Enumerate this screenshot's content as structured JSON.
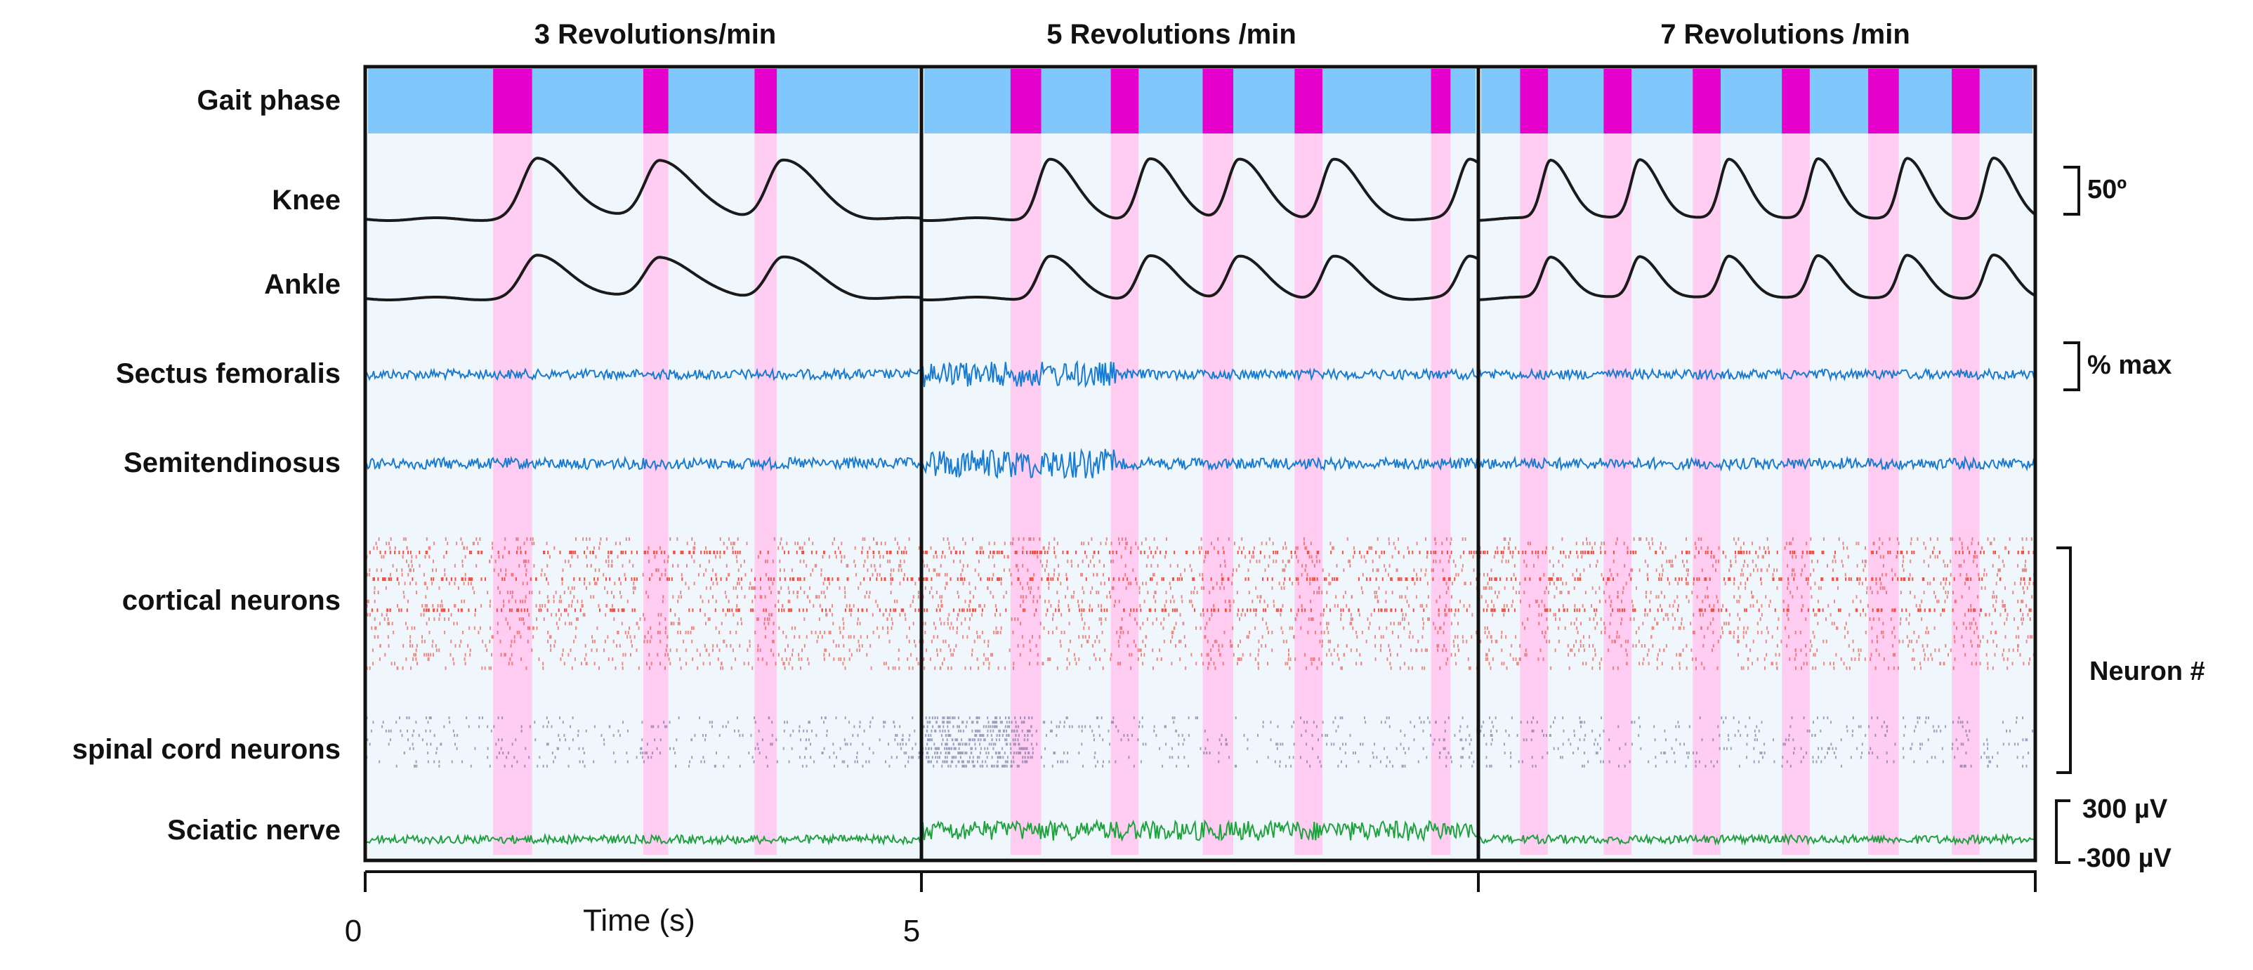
{
  "chart_data": {
    "type": "multi-panel time series with raster plots",
    "panels": [
      {
        "title": "3 Revolutions/min",
        "stance_bands": [
          [
            0.23,
            0.3
          ],
          [
            0.5,
            0.545
          ],
          [
            0.7,
            0.74
          ]
        ],
        "knee_peaks": [
          0.31,
          0.53,
          0.75
        ],
        "ankle_peaks": [
          0.31,
          0.53,
          0.75
        ]
      },
      {
        "title": "5 Revolutions /min",
        "stance_bands": [
          [
            0.16,
            0.215
          ],
          [
            0.34,
            0.39
          ],
          [
            0.505,
            0.56
          ],
          [
            0.67,
            0.72
          ],
          [
            0.915,
            0.95
          ]
        ],
        "knee_peaks": [
          0.23,
          0.41,
          0.57,
          0.74,
          0.985
        ],
        "ankle_peaks": [
          0.23,
          0.41,
          0.57,
          0.74,
          0.985
        ]
      },
      {
        "title": "7 Revolutions /min",
        "stance_bands": [
          [
            0.075,
            0.125
          ],
          [
            0.225,
            0.275
          ],
          [
            0.385,
            0.435
          ],
          [
            0.545,
            0.595
          ],
          [
            0.7,
            0.755
          ],
          [
            0.85,
            0.9
          ]
        ],
        "knee_peaks": [
          0.13,
          0.29,
          0.45,
          0.61,
          0.77,
          0.925
        ],
        "ankle_peaks": [
          0.13,
          0.29,
          0.45,
          0.61,
          0.77,
          0.925
        ]
      }
    ],
    "rows": [
      "Gait phase",
      "Knee",
      "Ankle",
      "Sectus femoralis",
      "Semitendinosus",
      "cortical neurons",
      "spinal cord neurons",
      "Sciatic nerve"
    ],
    "scale_bars": {
      "angle": "50º",
      "emg": "% max",
      "neurons": "Neuron #",
      "nerve_top": "300 µV",
      "nerve_bottom": "-300 µV"
    },
    "x_axis": {
      "label": "Time (s)",
      "ticks": [
        "0",
        "5"
      ]
    },
    "colors": {
      "gait_swing": "#80c8fc",
      "gait_stance": "#e600cc",
      "stance_band": "#ffc8f0",
      "panel_bg": "#f0f7fc",
      "kinematics": "#1a1a1a",
      "emg": "#1a7ad0",
      "cortical": "#e8443a",
      "spinal": "#5a5a8c",
      "nerve": "#22a040"
    }
  }
}
